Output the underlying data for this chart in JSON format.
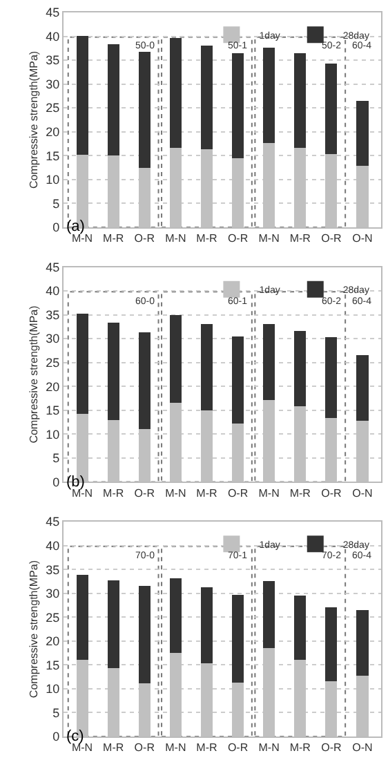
{
  "chart_data": [
    {
      "type": "bar",
      "stacked": true,
      "ylabel": "Compressive strength(MPa)",
      "categories": [
        "M-N",
        "M-R",
        "O-R",
        "M-N",
        "M-R",
        "O-R",
        "M-N",
        "M-R",
        "O-R",
        "O-N"
      ],
      "ylim": [
        0,
        45
      ],
      "yticks": [
        0,
        5,
        10,
        15,
        20,
        25,
        30,
        35,
        40,
        45
      ],
      "grid": "y",
      "legend": "top right",
      "annotations": [
        "(a)",
        "50-0",
        "50-1",
        "50-2",
        "60-4"
      ],
      "series": [
        {
          "name": "1day",
          "color": "#c0c0c0",
          "values": [
            15.2,
            15.0,
            12.4,
            16.6,
            16.3,
            14.5,
            17.6,
            16.7,
            15.3,
            12.8
          ]
        },
        {
          "name": "28day",
          "color": "#333333",
          "values": [
            24.9,
            23.4,
            24.3,
            23.0,
            21.7,
            21.9,
            20.0,
            19.8,
            19.0,
            13.7
          ]
        }
      ]
    },
    {
      "type": "bar",
      "stacked": true,
      "ylabel": "Compressive strength(MPa)",
      "categories": [
        "M-N",
        "M-R",
        "O-R",
        "M-N",
        "M-R",
        "O-R",
        "M-N",
        "M-R",
        "O-R",
        "O-N"
      ],
      "ylim": [
        0,
        45
      ],
      "yticks": [
        0,
        5,
        10,
        15,
        20,
        25,
        30,
        35,
        40,
        45
      ],
      "grid": "y",
      "legend": "top right",
      "annotations": [
        "(b)",
        "60-0",
        "60-1",
        "60-2",
        "60-4"
      ],
      "series": [
        {
          "name": "1day",
          "color": "#c0c0c0",
          "values": [
            14.2,
            13.0,
            11.0,
            16.5,
            15.0,
            12.2,
            17.1,
            15.8,
            13.4,
            12.8
          ]
        },
        {
          "name": "28day",
          "color": "#333333",
          "values": [
            21.1,
            20.3,
            20.4,
            18.5,
            18.0,
            18.3,
            16.0,
            15.8,
            16.9,
            13.7
          ]
        }
      ]
    },
    {
      "type": "bar",
      "stacked": true,
      "ylabel": "Compressive strength(MPa)",
      "categories": [
        "M-N",
        "M-R",
        "O-R",
        "M-N",
        "M-R",
        "O-R",
        "M-N",
        "M-R",
        "O-R",
        "O-N"
      ],
      "ylim": [
        0,
        45
      ],
      "yticks": [
        0,
        5,
        10,
        15,
        20,
        25,
        30,
        35,
        40,
        45
      ],
      "grid": "y",
      "legend": "top right",
      "annotations": [
        "(c)",
        "70-0",
        "70-1",
        "70-2",
        "60-4"
      ],
      "series": [
        {
          "name": "1day",
          "color": "#c0c0c0",
          "values": [
            16.1,
            14.3,
            11.2,
            17.5,
            15.3,
            11.3,
            18.5,
            16.0,
            11.6,
            12.8
          ]
        },
        {
          "name": "28day",
          "color": "#333333",
          "values": [
            17.8,
            18.4,
            20.3,
            15.6,
            15.9,
            18.3,
            14.1,
            13.5,
            15.4,
            13.7
          ]
        }
      ]
    }
  ]
}
